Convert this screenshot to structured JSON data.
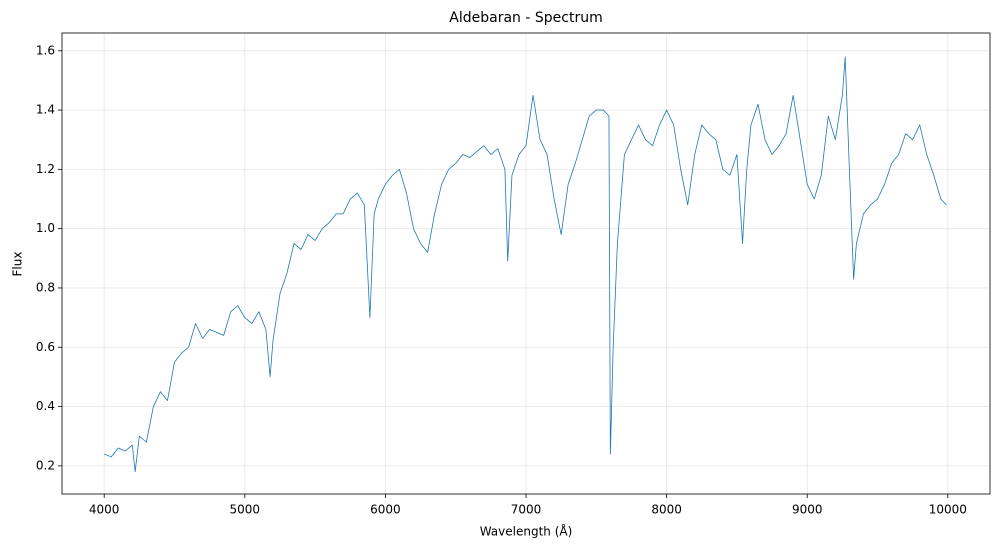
{
  "chart_data": {
    "type": "line",
    "title": "Aldebaran - Spectrum",
    "x_label": "Wavelength (Å)",
    "y_label": "Flux",
    "color": "#1f77b4",
    "grid": true,
    "xlim": [
      3700,
      10300
    ],
    "ylim": [
      0.105,
      1.66
    ],
    "xticks": [
      4000,
      5000,
      6000,
      7000,
      8000,
      9000,
      10000
    ],
    "yticks": [
      0.2,
      0.4,
      0.6,
      0.8,
      {
        "value": 1,
        "label": "1.0"
      },
      1.2,
      1.4,
      1.6
    ],
    "x": [
      4000,
      4050,
      4100,
      4150,
      4200,
      4220,
      4250,
      4300,
      4350,
      4400,
      4450,
      4500,
      4550,
      4600,
      4650,
      4700,
      4750,
      4800,
      4850,
      4900,
      4950,
      5000,
      5050,
      5100,
      5150,
      5180,
      5200,
      5250,
      5300,
      5350,
      5400,
      5450,
      5500,
      5550,
      5600,
      5650,
      5700,
      5750,
      5800,
      5850,
      5890,
      5920,
      5950,
      6000,
      6050,
      6100,
      6150,
      6200,
      6250,
      6300,
      6350,
      6400,
      6450,
      6500,
      6550,
      6600,
      6650,
      6700,
      6750,
      6800,
      6850,
      6870,
      6900,
      6950,
      7000,
      7050,
      7100,
      7150,
      7200,
      7250,
      7300,
      7350,
      7400,
      7450,
      7500,
      7550,
      7590,
      7600,
      7620,
      7650,
      7700,
      7750,
      7800,
      7850,
      7900,
      7950,
      8000,
      8050,
      8100,
      8150,
      8200,
      8250,
      8300,
      8350,
      8400,
      8450,
      8500,
      8540,
      8570,
      8600,
      8650,
      8700,
      8750,
      8800,
      8850,
      8900,
      8950,
      9000,
      9050,
      9100,
      9150,
      9200,
      9250,
      9270,
      9300,
      9330,
      9350,
      9400,
      9450,
      9500,
      9550,
      9600,
      9650,
      9700,
      9750,
      9800,
      9850,
      9900,
      9950,
      9990
    ],
    "values": [
      0.24,
      0.23,
      0.26,
      0.25,
      0.27,
      0.18,
      0.3,
      0.28,
      0.4,
      0.45,
      0.42,
      0.55,
      0.58,
      0.6,
      0.68,
      0.63,
      0.66,
      0.65,
      0.64,
      0.72,
      0.74,
      0.7,
      0.68,
      0.72,
      0.66,
      0.5,
      0.62,
      0.78,
      0.85,
      0.95,
      0.93,
      0.98,
      0.96,
      1.0,
      1.02,
      1.05,
      1.05,
      1.1,
      1.12,
      1.08,
      0.7,
      1.05,
      1.1,
      1.15,
      1.18,
      1.2,
      1.12,
      1.0,
      0.95,
      0.92,
      1.05,
      1.15,
      1.2,
      1.22,
      1.25,
      1.24,
      1.26,
      1.28,
      1.25,
      1.27,
      1.2,
      0.89,
      1.18,
      1.25,
      1.28,
      1.45,
      1.3,
      1.25,
      1.1,
      0.98,
      1.15,
      1.22,
      1.3,
      1.38,
      1.4,
      1.4,
      1.38,
      0.24,
      0.6,
      0.95,
      1.25,
      1.3,
      1.35,
      1.3,
      1.28,
      1.35,
      1.4,
      1.35,
      1.2,
      1.08,
      1.25,
      1.35,
      1.32,
      1.3,
      1.2,
      1.18,
      1.25,
      0.95,
      1.2,
      1.35,
      1.42,
      1.3,
      1.25,
      1.28,
      1.32,
      1.45,
      1.3,
      1.15,
      1.1,
      1.18,
      1.38,
      1.3,
      1.45,
      1.58,
      1.2,
      0.83,
      0.95,
      1.05,
      1.08,
      1.1,
      1.15,
      1.22,
      1.25,
      1.32,
      1.3,
      1.35,
      1.25,
      1.18,
      1.1,
      1.08
    ]
  }
}
